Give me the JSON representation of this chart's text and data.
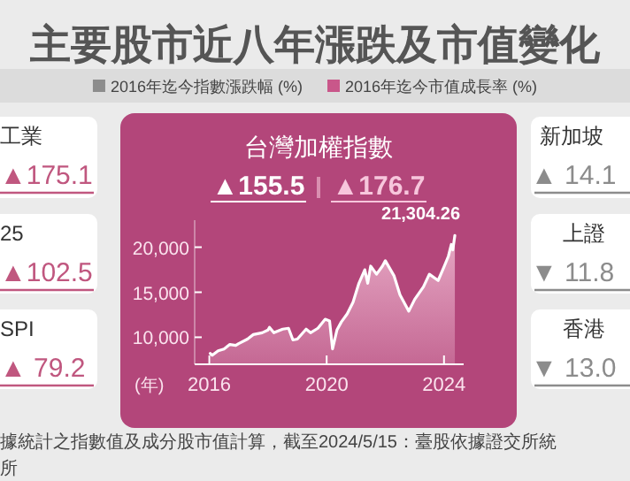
{
  "chart_data": [
    {
      "type": "other",
      "title": "主要股市近八年漲跌及市值變化",
      "categories": [
        "工業",
        "25",
        "SPI",
        "新加坡",
        "上證",
        "香港"
      ],
      "value_labels": [
        "▲175.1",
        "▲102.5",
        "▲ 79.2",
        "▲ 14.1",
        "▼ 11.8",
        "▼ 13.0"
      ],
      "colors": [
        "#c0577f",
        "#c0577f",
        "#c0577f",
        "#8c8c8c",
        "#8c8c8c",
        "#8c8c8c"
      ],
      "annotations": [
        "2016年迄今指數漲跌幅 (%)",
        "2016年迄今市值成長率 (%)",
        "據統計之指數值及成分股市值計算，截至2024/5/15：臺股依據證交所統",
        "所"
      ]
    },
    {
      "type": "area",
      "title": "台灣加權指數",
      "subtitle": [
        "▲155.5",
        "▲176.7"
      ],
      "xlabel": "(年)",
      "x": [
        2016.03,
        2016.1,
        2016.3,
        2016.5,
        2016.7,
        2016.9,
        2017.0,
        2017.3,
        2017.5,
        2017.8,
        2018.0,
        2018.05,
        2018.2,
        2018.5,
        2018.7,
        2018.85,
        2019.0,
        2019.3,
        2019.45,
        2019.7,
        2019.95,
        2020.1,
        2020.2,
        2020.35,
        2020.5,
        2020.7,
        2020.9,
        2021.1,
        2021.3,
        2021.4,
        2021.5,
        2021.7,
        2021.9,
        2022.0,
        2022.3,
        2022.5,
        2022.8,
        2023.0,
        2023.3,
        2023.5,
        2023.8,
        2024.0,
        2024.15,
        2024.25,
        2024.3,
        2024.37
      ],
      "values": [
        8200,
        8000,
        8500,
        8700,
        9200,
        9100,
        9300,
        9800,
        10300,
        10500,
        10800,
        11100,
        10500,
        10900,
        11000,
        9700,
        9800,
        10900,
        10500,
        11000,
        12000,
        11800,
        8700,
        10800,
        11700,
        12600,
        13900,
        16000,
        17500,
        16000,
        17900,
        17000,
        17900,
        18500,
        16800,
        14700,
        12900,
        14200,
        15600,
        17000,
        16300,
        17800,
        19000,
        20300,
        19700,
        21304.26
      ],
      "color": "#ffffff",
      "xlim": [
        2015.5,
        2024.67
      ],
      "xticks": [
        2016,
        2020,
        2024
      ],
      "ylim": [
        7000,
        23000
      ],
      "yticks": [
        {
          "value": 10000,
          "label": "10,000"
        },
        {
          "value": 15000,
          "label": "15,000"
        },
        {
          "value": 20000,
          "label": "20,000"
        }
      ],
      "annotations": [
        {
          "text": "21,304.26",
          "x": 2024.37,
          "y": 21304.26
        }
      ]
    }
  ]
}
